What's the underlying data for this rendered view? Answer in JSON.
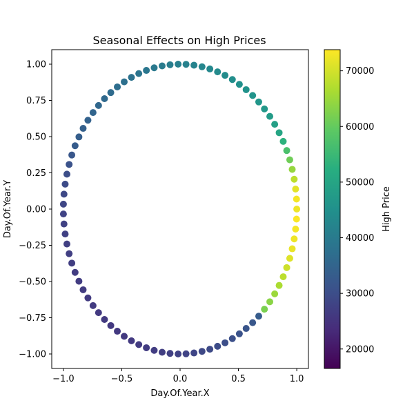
{
  "chart_data": {
    "type": "scatter",
    "title": "Seasonal Effects on High Prices",
    "xlabel": "Day.Of.Year.X",
    "ylabel": "Day.Of.Year.Y",
    "xlim": [
      -1.1,
      1.1
    ],
    "ylim": [
      -1.1,
      1.1
    ],
    "x_ticks": [
      -1.0,
      -0.5,
      0.0,
      0.5,
      1.0
    ],
    "x_tick_labels": [
      "−1.0",
      "−0.5",
      "0.0",
      "0.5",
      "1.0"
    ],
    "y_ticks": [
      1.0,
      0.75,
      0.5,
      0.25,
      0.0,
      -0.25,
      -0.5,
      -0.75,
      -1.0
    ],
    "y_tick_labels": [
      "1.00",
      "0.75",
      "0.50",
      "0.25",
      "0.00",
      "−0.25",
      "−0.50",
      "−0.75",
      "−1.00"
    ],
    "grid": false,
    "colormap": "viridis",
    "colorbar": {
      "label": "High Price",
      "range": [
        16500,
        73800
      ],
      "ticks": [
        20000,
        30000,
        40000,
        50000,
        60000,
        70000
      ],
      "tick_labels": [
        "20000",
        "30000",
        "40000",
        "50000",
        "60000",
        "70000"
      ]
    },
    "series": [
      {
        "x": [
          1.0,
          0.998,
          0.99,
          0.978,
          0.961,
          0.94,
          0.914,
          0.884,
          0.849,
          0.811,
          0.769,
          0.723,
          0.674,
          0.622,
          0.566,
          0.508,
          0.448,
          0.385,
          0.321,
          0.255,
          0.188,
          0.119,
          0.051,
          -0.017,
          -0.086,
          -0.154,
          -0.222,
          -0.289,
          -0.354,
          -0.417,
          -0.479,
          -0.538,
          -0.594,
          -0.648,
          -0.699,
          -0.746,
          -0.79,
          -0.831,
          -0.867,
          -0.9,
          -0.928,
          -0.951,
          -0.97,
          -0.985,
          -0.995,
          -1.0,
          -1.0,
          -0.995,
          -0.985,
          -0.97,
          -0.951,
          -0.928,
          -0.9,
          -0.867,
          -0.831,
          -0.79,
          -0.746,
          -0.699,
          -0.648,
          -0.594,
          -0.538,
          -0.479,
          -0.417,
          -0.354,
          -0.289,
          -0.222,
          -0.154,
          -0.086,
          -0.017,
          0.051,
          0.119,
          0.188,
          0.255,
          0.321,
          0.385,
          0.448,
          0.508,
          0.566,
          0.622,
          0.674,
          0.723,
          0.769,
          0.811,
          0.849,
          0.884,
          0.914,
          0.94,
          0.961,
          0.978,
          0.99,
          0.998
        ],
        "y": [
          0.0,
          0.069,
          0.138,
          0.206,
          0.274,
          0.34,
          0.404,
          0.467,
          0.527,
          0.585,
          0.64,
          0.691,
          0.739,
          0.784,
          0.824,
          0.861,
          0.894,
          0.923,
          0.947,
          0.967,
          0.982,
          0.993,
          0.999,
          1.0,
          0.996,
          0.988,
          0.975,
          0.957,
          0.935,
          0.909,
          0.878,
          0.843,
          0.804,
          0.762,
          0.715,
          0.666,
          0.613,
          0.557,
          0.498,
          0.437,
          0.373,
          0.308,
          0.241,
          0.172,
          0.103,
          0.034,
          -0.034,
          -0.103,
          -0.172,
          -0.241,
          -0.308,
          -0.373,
          -0.437,
          -0.498,
          -0.557,
          -0.613,
          -0.666,
          -0.715,
          -0.762,
          -0.804,
          -0.843,
          -0.878,
          -0.909,
          -0.935,
          -0.957,
          -0.975,
          -0.988,
          -0.996,
          -1.0,
          -0.999,
          -0.993,
          -0.982,
          -0.967,
          -0.947,
          -0.923,
          -0.894,
          -0.861,
          -0.824,
          -0.784,
          -0.739,
          -0.691,
          -0.64,
          -0.585,
          -0.527,
          -0.467,
          -0.404,
          -0.34,
          -0.274,
          -0.206,
          -0.138,
          -0.069
        ],
        "color_values": [
          72500,
          73000,
          71500,
          68000,
          64500,
          61000,
          57000,
          53000,
          50000,
          48500,
          47500,
          47000,
          46500,
          46000,
          45500,
          45000,
          44500,
          44000,
          43500,
          43000,
          42500,
          42000,
          41500,
          41000,
          40500,
          40000,
          39500,
          39000,
          38500,
          38000,
          37500,
          37000,
          36500,
          36000,
          35500,
          35000,
          34500,
          34000,
          33500,
          33000,
          32000,
          31000,
          30000,
          29500,
          29000,
          28500,
          28000,
          27800,
          27600,
          27400,
          27200,
          27000,
          26800,
          26600,
          26500,
          26400,
          26300,
          26200,
          26100,
          26000,
          26000,
          26100,
          26200,
          26400,
          26600,
          26800,
          27000,
          27300,
          27600,
          28000,
          28400,
          28800,
          29200,
          29600,
          30000,
          30500,
          31000,
          31500,
          32000,
          33000,
          62000,
          63500,
          65000,
          66500,
          68000,
          69500,
          71000,
          72000,
          72500,
          73000,
          73500
        ]
      }
    ]
  }
}
